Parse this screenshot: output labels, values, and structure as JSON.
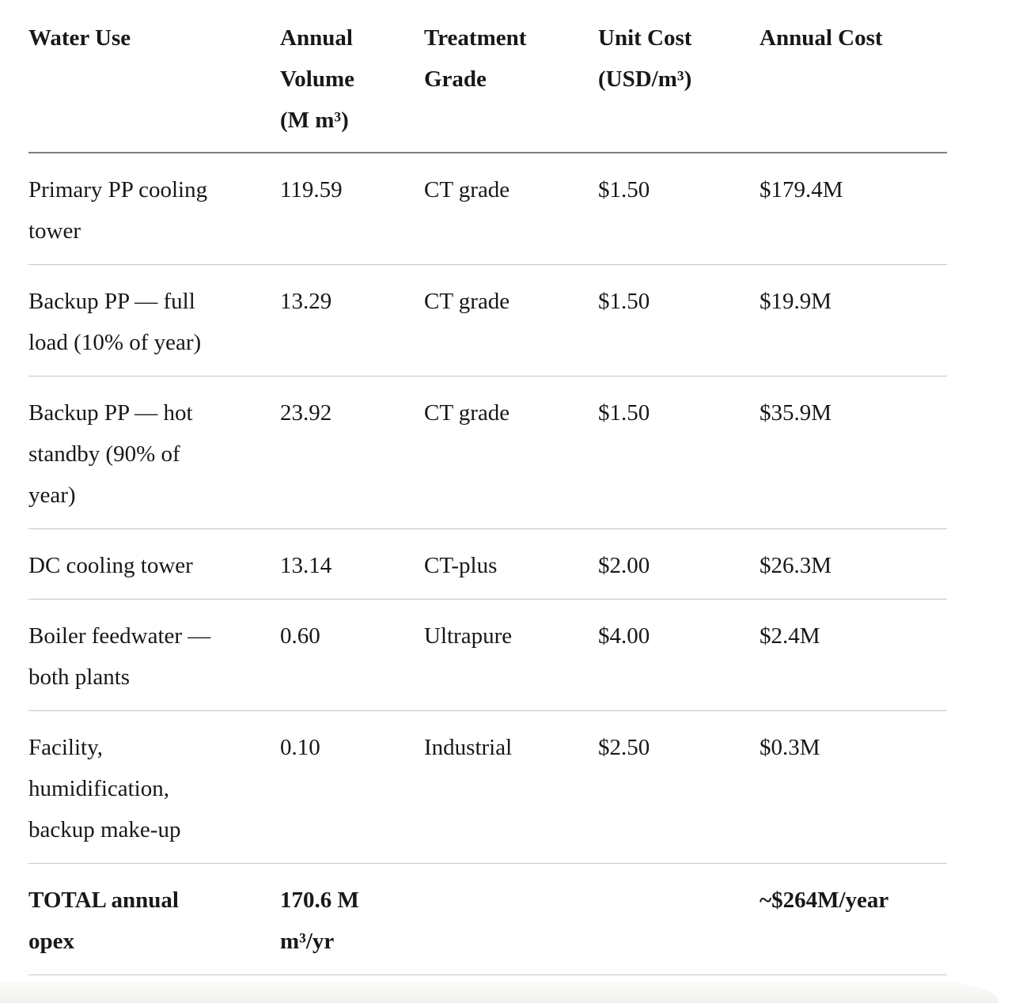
{
  "page": {
    "background": "#ffffff",
    "text_color": "#181818",
    "header_rule_color": "#7f7f7f",
    "row_rule_color": "#c6c6c6",
    "bottom_band_color": "#f2f1ef"
  },
  "table": {
    "columns": [
      {
        "key": "use",
        "label": "Water Use"
      },
      {
        "key": "volume",
        "label": "Annual\nVolume\n(M m³)"
      },
      {
        "key": "grade",
        "label": "Treatment\nGrade"
      },
      {
        "key": "unit_cost",
        "label": "Unit Cost\n(USD/m³)"
      },
      {
        "key": "annual_cost",
        "label": "Annual Cost"
      }
    ],
    "rows": [
      {
        "use": "Primary PP cooling\ntower",
        "volume": "119.59",
        "grade": "CT grade",
        "unit_cost": "$1.50",
        "annual_cost": "$179.4M",
        "is_total": false
      },
      {
        "use": "Backup PP — full\nload (10% of year)",
        "volume": "13.29",
        "grade": "CT grade",
        "unit_cost": "$1.50",
        "annual_cost": "$19.9M",
        "is_total": false
      },
      {
        "use": "Backup PP — hot\nstandby (90% of\nyear)",
        "volume": "23.92",
        "grade": "CT grade",
        "unit_cost": "$1.50",
        "annual_cost": "$35.9M",
        "is_total": false
      },
      {
        "use": "DC cooling tower",
        "volume": "13.14",
        "grade": "CT-plus",
        "unit_cost": "$2.00",
        "annual_cost": "$26.3M",
        "is_total": false
      },
      {
        "use": "Boiler feedwater —\nboth plants",
        "volume": "0.60",
        "grade": "Ultrapure",
        "unit_cost": "$4.00",
        "annual_cost": "$2.4M",
        "is_total": false
      },
      {
        "use": "Facility,\nhumidification,\nbackup make-up",
        "volume": "0.10",
        "grade": "Industrial",
        "unit_cost": "$2.50",
        "annual_cost": "$0.3M",
        "is_total": false
      },
      {
        "use": "TOTAL annual\nopex",
        "volume": "170.6 M\nm³/yr",
        "grade": "",
        "unit_cost": "",
        "annual_cost": "~$264M/year",
        "is_total": true
      }
    ]
  }
}
